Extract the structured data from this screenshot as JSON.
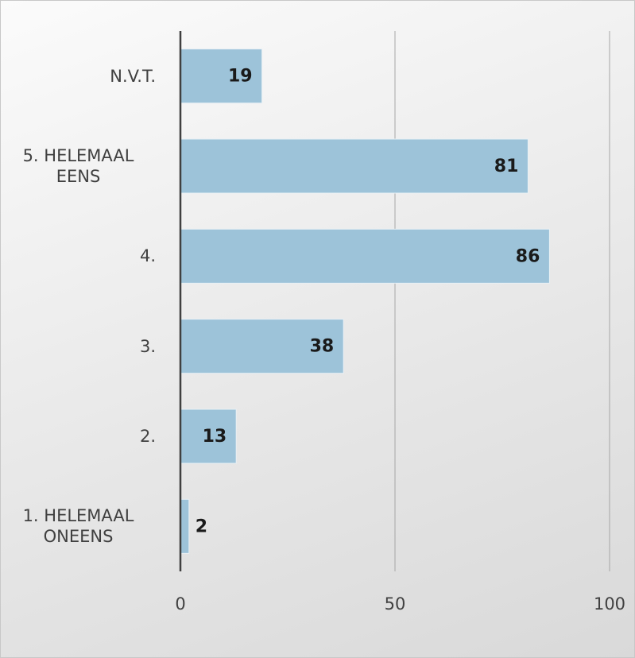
{
  "chart_data": {
    "type": "bar",
    "orientation": "horizontal",
    "categories": [
      "N.V.T.",
      "5. HELEMAAL EENS",
      "4.",
      "3.",
      "2.",
      "1. HELEMAAL ONEENS"
    ],
    "values": [
      19,
      81,
      86,
      38,
      13,
      2
    ],
    "color": "#9dc3d9",
    "xlim": [
      0,
      100
    ],
    "xticks": [
      0,
      50,
      100
    ],
    "grid": true
  }
}
